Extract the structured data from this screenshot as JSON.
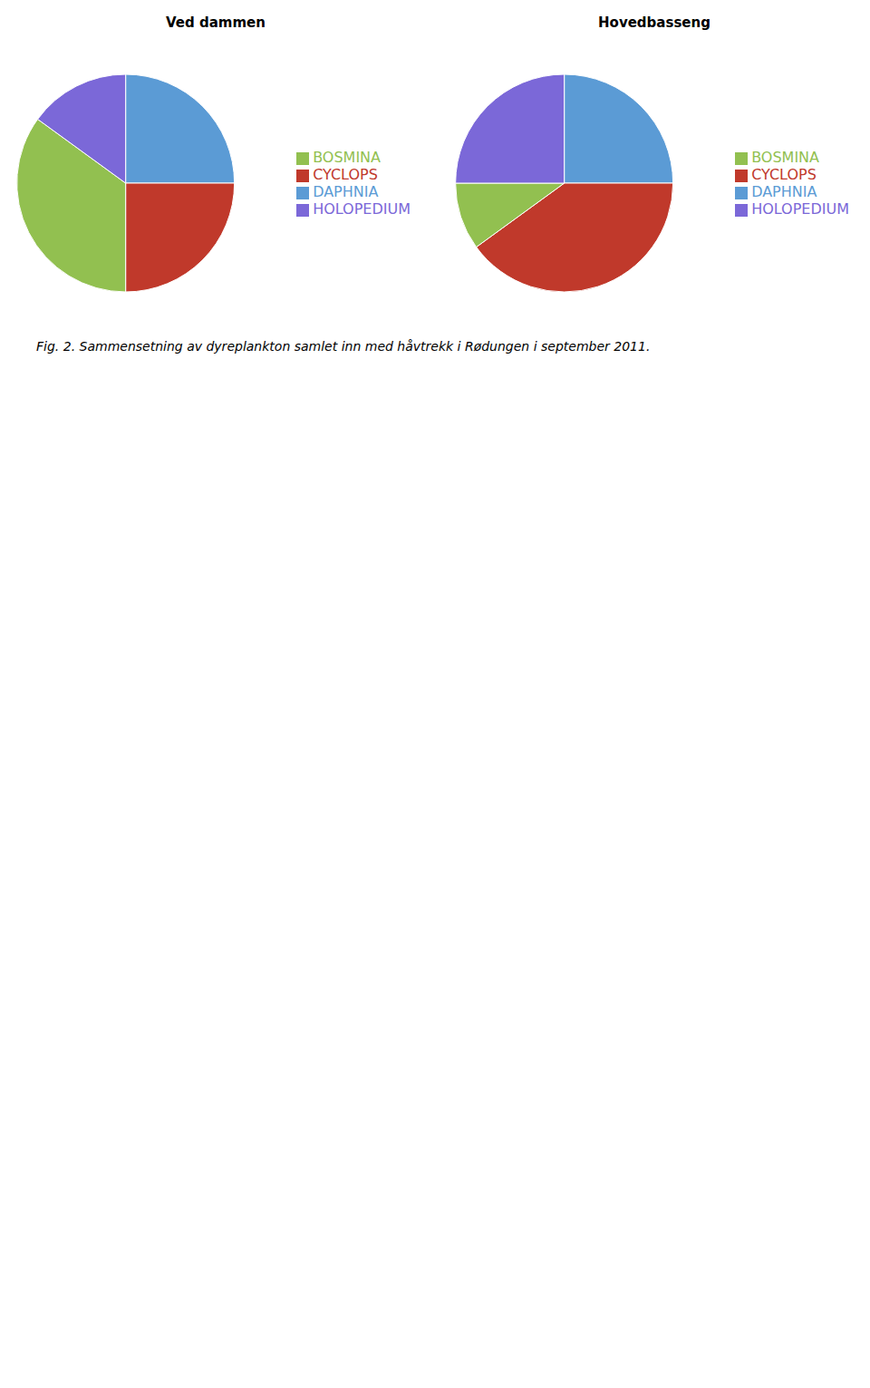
{
  "chart_data": [
    {
      "type": "pie",
      "title": "Ved dammen",
      "categories": [
        "DAPHNIA",
        "CYCLOPS",
        "BOSMINA",
        "HOLOPEDIUM"
      ],
      "values": [
        25,
        25,
        35,
        15
      ],
      "colors": [
        "#5B9BD5",
        "#C0392B",
        "#92C050",
        "#7B68D8"
      ],
      "legend": "right"
    },
    {
      "type": "pie",
      "title": "Hovedbasseng",
      "categories": [
        "DAPHNIA",
        "CYCLOPS",
        "BOSMINA",
        "HOLOPEDIUM"
      ],
      "values": [
        25,
        40,
        10,
        25
      ],
      "colors": [
        "#5B9BD5",
        "#C0392B",
        "#92C050",
        "#7B68D8"
      ],
      "legend": "right"
    }
  ],
  "caption": "Fig. 2. Sammensetning av dyreplankton samlet inn med håvtrekk i Rødungen i september 2011."
}
